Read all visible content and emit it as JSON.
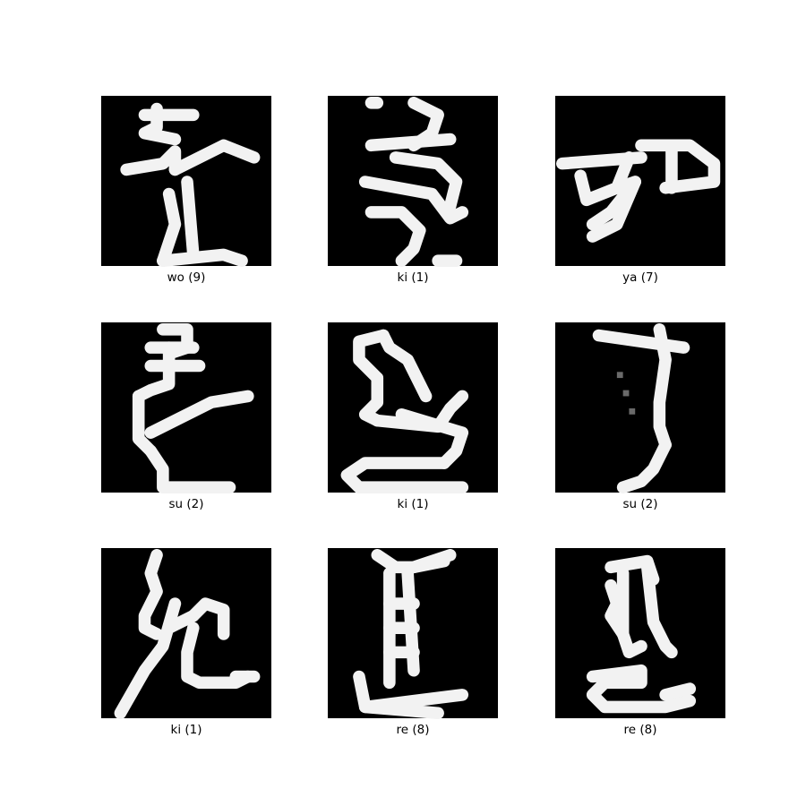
{
  "figure": {
    "background": "#ffffff",
    "tile_background": "#000000",
    "stroke_color": "#f2f2f2"
  },
  "samples": [
    {
      "label": "wo (9)",
      "glyph": "wo-character-glyph"
    },
    {
      "label": "ki (1)",
      "glyph": "ki-character-glyph"
    },
    {
      "label": "ya (7)",
      "glyph": "ya-character-glyph"
    },
    {
      "label": "su (2)",
      "glyph": "su-character-glyph"
    },
    {
      "label": "ki (1)",
      "glyph": "ki-character-glyph"
    },
    {
      "label": "su (2)",
      "glyph": "su-character-glyph"
    },
    {
      "label": "ki (1)",
      "glyph": "ki-character-glyph"
    },
    {
      "label": "re (8)",
      "glyph": "re-character-glyph"
    },
    {
      "label": "re (8)",
      "glyph": "re-character-glyph"
    }
  ]
}
